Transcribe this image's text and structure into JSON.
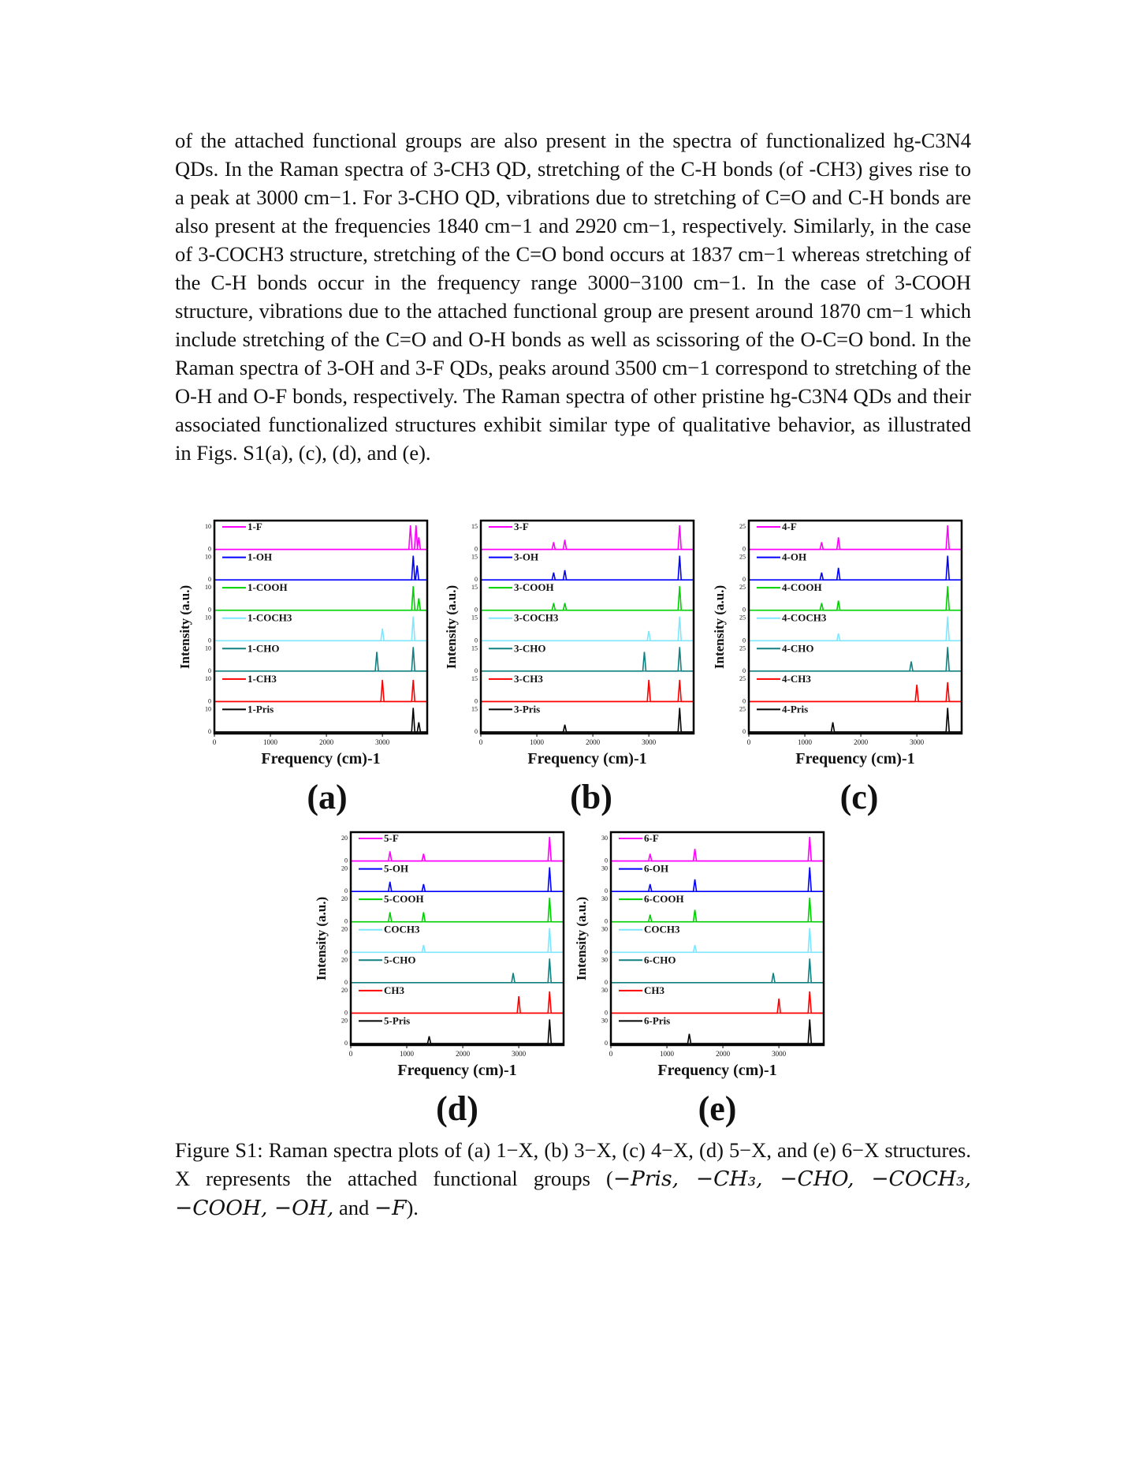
{
  "paragraph": "of the attached functional groups are also present in the spectra of functionalized hg-C3N4 QDs. In the Raman spectra of 3-CH3 QD, stretching of the C-H bonds (of -CH3) gives rise to a peak at 3000 cm−1. For 3-CHO QD, vibrations due to stretching of C=O and C-H bonds are also present at the frequencies 1840 cm−1 and 2920 cm−1, respectively. Similarly, in the case of 3-COCH3 structure, stretching of the C=O bond occurs at 1837 cm−1 whereas stretching of the C-H bonds occur in the frequency range 3000−3100 cm−1. In the case of 3-COOH structure, vibrations due to the attached functional group are present around 1870 cm−1 which include stretching of the C=O and O-H bonds as well as scissoring of the O-C=O bond. In the Raman spectra of 3-OH and 3-F QDs, peaks around 3500 cm−1 correspond to stretching of the O-H and O-F bonds, respectively. The Raman spectra of other pristine hg-C3N4 QDs and their associated functionalized structures exhibit similar type of qualitative behavior, as illustrated in Figs. S1(a), (c), (d), and (e).",
  "series_colors": [
    "#ff00ff",
    "#0000ff",
    "#00d000",
    "#7fe6ff",
    "#108080",
    "#ff0000",
    "#000000"
  ],
  "chart_data": [
    {
      "type": "line",
      "panel": "(a)",
      "ylabel": "Intensity (a.u.)",
      "xlabel": "Frequency (cm)-1",
      "xticks": [
        "0",
        "1000",
        "2000",
        "3000"
      ],
      "xlim": [
        0,
        3800
      ],
      "ytick": "10",
      "ytick_zero": "0",
      "series": [
        {
          "name": "1-F",
          "peaks": [
            [
              3500,
              1.0
            ],
            [
              3600,
              1.0
            ],
            [
              3650,
              0.5
            ]
          ]
        },
        {
          "name": "1-OH",
          "peaks": [
            [
              3550,
              1.0
            ],
            [
              3620,
              0.6
            ]
          ]
        },
        {
          "name": "1-COOH",
          "peaks": [
            [
              3550,
              1.0
            ],
            [
              3650,
              0.5
            ]
          ]
        },
        {
          "name": "1-COCH3",
          "peaks": [
            [
              3000,
              0.5
            ],
            [
              3550,
              1.0
            ]
          ]
        },
        {
          "name": "1-CHO",
          "peaks": [
            [
              2900,
              0.8
            ],
            [
              3550,
              1.0
            ]
          ]
        },
        {
          "name": "1-CH3",
          "peaks": [
            [
              3000,
              0.9
            ],
            [
              3550,
              0.9
            ]
          ]
        },
        {
          "name": "1-Pris",
          "peaks": [
            [
              3550,
              1.0
            ],
            [
              3650,
              0.4
            ]
          ]
        }
      ]
    },
    {
      "type": "line",
      "panel": "(b)",
      "ylabel": "Intensity (a.u.)",
      "xlabel": "Frequency (cm)-1",
      "xticks": [
        "0",
        "1000",
        "2000",
        "3000"
      ],
      "xlim": [
        0,
        3800
      ],
      "ytick": "15",
      "ytick_zero": "0",
      "series": [
        {
          "name": "3-F",
          "peaks": [
            [
              1300,
              0.3
            ],
            [
              1500,
              0.4
            ],
            [
              3550,
              1.0
            ]
          ]
        },
        {
          "name": "3-OH",
          "peaks": [
            [
              1300,
              0.3
            ],
            [
              1500,
              0.4
            ],
            [
              3550,
              1.0
            ]
          ]
        },
        {
          "name": "3-COOH",
          "peaks": [
            [
              1300,
              0.3
            ],
            [
              1500,
              0.3
            ],
            [
              3550,
              1.0
            ]
          ]
        },
        {
          "name": "3-COCH3",
          "peaks": [
            [
              3000,
              0.4
            ],
            [
              3550,
              1.0
            ]
          ]
        },
        {
          "name": "3-CHO",
          "peaks": [
            [
              2920,
              0.8
            ],
            [
              3550,
              1.0
            ]
          ]
        },
        {
          "name": "3-CH3",
          "peaks": [
            [
              3000,
              0.9
            ],
            [
              3550,
              0.9
            ]
          ]
        },
        {
          "name": "3-Pris",
          "peaks": [
            [
              1500,
              0.3
            ],
            [
              3550,
              1.0
            ]
          ]
        }
      ]
    },
    {
      "type": "line",
      "panel": "(c)",
      "ylabel": "Intensity (a.u.)",
      "xlabel": "Frequency (cm)-1",
      "xticks": [
        "0",
        "1000",
        "2000",
        "3000"
      ],
      "xlim": [
        0,
        3800
      ],
      "ytick": "25",
      "ytick_zero": "0",
      "series": [
        {
          "name": "4-F",
          "peaks": [
            [
              1300,
              0.3
            ],
            [
              1600,
              0.5
            ],
            [
              3550,
              1.0
            ]
          ]
        },
        {
          "name": "4-OH",
          "peaks": [
            [
              1300,
              0.3
            ],
            [
              1600,
              0.5
            ],
            [
              3550,
              1.0
            ]
          ]
        },
        {
          "name": "4-COOH",
          "peaks": [
            [
              1300,
              0.3
            ],
            [
              1600,
              0.4
            ],
            [
              3550,
              1.0
            ]
          ]
        },
        {
          "name": "4-COCH3",
          "peaks": [
            [
              1600,
              0.3
            ],
            [
              3550,
              1.0
            ]
          ]
        },
        {
          "name": "4-CHO",
          "peaks": [
            [
              2900,
              0.4
            ],
            [
              3550,
              1.0
            ]
          ]
        },
        {
          "name": "4-CH3",
          "peaks": [
            [
              3000,
              0.7
            ],
            [
              3550,
              0.8
            ]
          ]
        },
        {
          "name": "4-Pris",
          "peaks": [
            [
              1500,
              0.4
            ],
            [
              3550,
              1.0
            ]
          ]
        }
      ]
    },
    {
      "type": "line",
      "panel": "(d)",
      "ylabel": "Intensity (a.u.)",
      "xlabel": "Frequency (cm)-1",
      "xticks": [
        "0",
        "1000",
        "2000",
        "3000"
      ],
      "xlim": [
        0,
        3800
      ],
      "ytick": "20",
      "ytick_zero": "0",
      "series": [
        {
          "name": "5-F",
          "peaks": [
            [
              700,
              0.4
            ],
            [
              1300,
              0.3
            ],
            [
              3550,
              1.0
            ]
          ]
        },
        {
          "name": "5-OH",
          "peaks": [
            [
              700,
              0.4
            ],
            [
              1300,
              0.3
            ],
            [
              3550,
              1.0
            ]
          ]
        },
        {
          "name": "5-COOH",
          "peaks": [
            [
              700,
              0.4
            ],
            [
              1300,
              0.4
            ],
            [
              3550,
              1.0
            ]
          ]
        },
        {
          "name": "COCH3",
          "peaks": [
            [
              1300,
              0.3
            ],
            [
              3550,
              1.0
            ]
          ]
        },
        {
          "name": "5-CHO",
          "peaks": [
            [
              2900,
              0.4
            ],
            [
              3550,
              1.0
            ]
          ]
        },
        {
          "name": "CH3",
          "peaks": [
            [
              3000,
              0.7
            ],
            [
              3550,
              0.9
            ]
          ]
        },
        {
          "name": "5-Pris",
          "peaks": [
            [
              1400,
              0.3
            ],
            [
              3550,
              1.0
            ]
          ]
        }
      ]
    },
    {
      "type": "line",
      "panel": "(e)",
      "ylabel": "Intensity (a.u.)",
      "xlabel": "Frequency (cm)-1",
      "xticks": [
        "0",
        "1000",
        "2000",
        "3000"
      ],
      "xlim": [
        0,
        3800
      ],
      "ytick": "30",
      "ytick_zero": "0",
      "series": [
        {
          "name": "6-F",
          "peaks": [
            [
              700,
              0.3
            ],
            [
              1500,
              0.5
            ],
            [
              3550,
              1.0
            ]
          ]
        },
        {
          "name": "6-OH",
          "peaks": [
            [
              700,
              0.3
            ],
            [
              1500,
              0.5
            ],
            [
              3550,
              1.0
            ]
          ]
        },
        {
          "name": "6-COOH",
          "peaks": [
            [
              700,
              0.3
            ],
            [
              1500,
              0.5
            ],
            [
              3550,
              1.0
            ]
          ]
        },
        {
          "name": "COCH3",
          "peaks": [
            [
              1500,
              0.3
            ],
            [
              3550,
              1.0
            ]
          ]
        },
        {
          "name": "6-CHO",
          "peaks": [
            [
              2900,
              0.4
            ],
            [
              3550,
              1.0
            ]
          ]
        },
        {
          "name": "CH3",
          "peaks": [
            [
              3000,
              0.6
            ],
            [
              3550,
              0.9
            ]
          ]
        },
        {
          "name": "6-Pris",
          "peaks": [
            [
              1400,
              0.4
            ],
            [
              3550,
              1.0
            ]
          ]
        }
      ]
    }
  ],
  "caption": {
    "line1": "Figure S1: Raman spectra plots of (a) 1−X, (b) 3−X, (c) 4−X, (d) 5−X, and (e) 6−X structures. X represents the attached functional groups (",
    "groups": "−Pris, −CH₃, −CHO, −COCH₃, −COOH, −OH,",
    "and": " and ",
    "last": "−F",
    "end": ")."
  }
}
